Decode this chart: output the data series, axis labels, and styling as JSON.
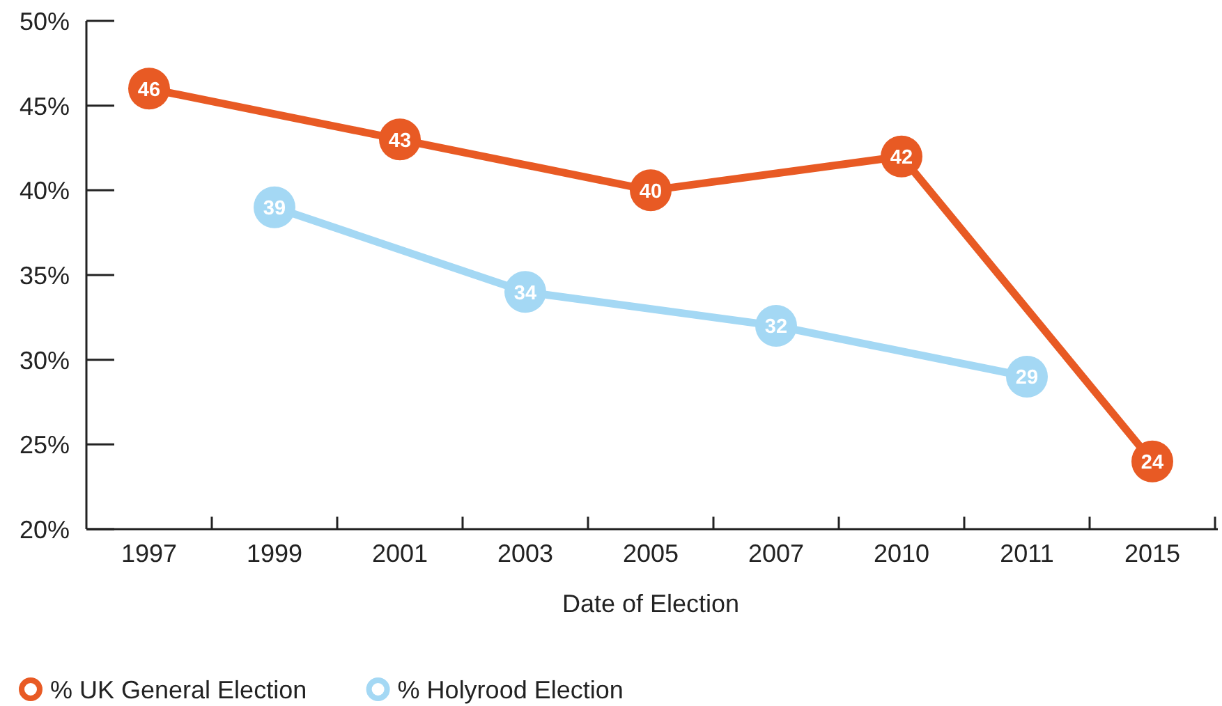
{
  "chart_data": {
    "type": "line",
    "xlabel": "Date of Election",
    "categories": [
      "1997",
      "1999",
      "2001",
      "2003",
      "2005",
      "2007",
      "2010",
      "2011",
      "2015"
    ],
    "series": [
      {
        "name": "% UK General Election",
        "color": "#e85a24",
        "values": [
          46,
          null,
          43,
          null,
          40,
          null,
          42,
          null,
          24
        ]
      },
      {
        "name": "% Holyrood Election",
        "color": "#a4d8f4",
        "values": [
          null,
          39,
          null,
          34,
          null,
          32,
          null,
          29,
          null
        ]
      }
    ],
    "ylim": [
      20,
      50
    ],
    "yticks": [
      {
        "value": 20,
        "label": "20%"
      },
      {
        "value": 25,
        "label": "25%"
      },
      {
        "value": 30,
        "label": "30%"
      },
      {
        "value": 35,
        "label": "35%"
      },
      {
        "value": 40,
        "label": "40%"
      },
      {
        "value": 45,
        "label": "45%"
      },
      {
        "value": 50,
        "label": "50%"
      }
    ],
    "data_labels": true,
    "marker": "circle",
    "legend": "bottom left"
  }
}
